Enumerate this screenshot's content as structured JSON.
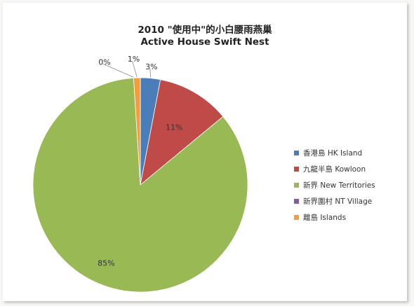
{
  "chart_data": {
    "type": "pie",
    "title": "2010 \"使用中\"的小白腰雨燕巢",
    "subtitle": "Active House Swift Nest",
    "start_angle_deg": 0,
    "categories": [
      "香港島 HK Island",
      "九龍半島 Kowloon",
      "新界 New Territories",
      "新界圍村 NT Village",
      "離島 Islands"
    ],
    "values": [
      3,
      11,
      85,
      0,
      1
    ],
    "data_labels": [
      "3%",
      "11%",
      "85%",
      "0%",
      "1%"
    ],
    "colors": [
      "#4a7ebb",
      "#be4b48",
      "#98b954",
      "#7d60a0",
      "#f59d3d"
    ],
    "legend_position": "right"
  }
}
